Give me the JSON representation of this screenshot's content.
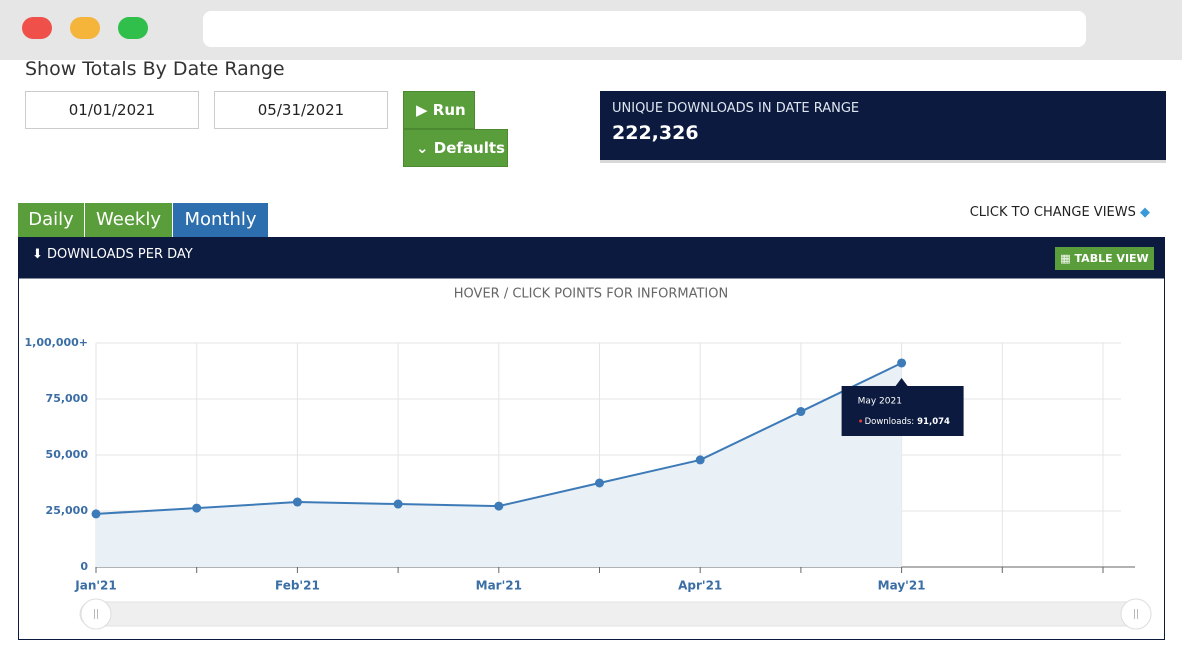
{
  "header": {
    "title": "Show Totals By Date Range"
  },
  "form": {
    "start_date": "01/01/2021",
    "end_date": "05/31/2021",
    "run": "Run",
    "defaults": "Defaults"
  },
  "stat": {
    "label": "UNIQUE DOWNLOADS IN DATE RANGE",
    "value": "222,326"
  },
  "tabs": [
    "Daily",
    "Weekly",
    "Monthly"
  ],
  "hint": "CLICK TO CHANGE VIEWS",
  "panel": {
    "title": "DOWNLOADS PER DAY",
    "table_view": "TABLE VIEW"
  },
  "chart_data": {
    "type": "area",
    "subtitle": "HOVER / CLICK POINTS FOR INFORMATION",
    "categories": [
      "Jan'21",
      null,
      "Feb'21",
      null,
      "Mar'21",
      null,
      "Apr'21",
      null,
      "May'21",
      null,
      null
    ],
    "values": [
      23700,
      26300,
      29000,
      28100,
      27200,
      37500,
      47800,
      69400,
      91074,
      null,
      null
    ],
    "value_labels": [
      null,
      null,
      null,
      null,
      null,
      null,
      null,
      null,
      "91,074",
      null,
      null
    ],
    "color": "#3d7ab8",
    "fill": "#e9f0f6",
    "ylim": [
      0,
      100000
    ],
    "yticks": [
      0,
      {
        "value": 25000,
        "label": "25,000"
      },
      {
        "value": 50000,
        "label": "50,000"
      },
      {
        "value": 75000,
        "label": "75,000"
      },
      {
        "value": 100000,
        "label": "1,00,000+"
      }
    ],
    "grid": true,
    "tooltip": {
      "title": "May 2021",
      "series_label": "Downloads:"
    }
  }
}
